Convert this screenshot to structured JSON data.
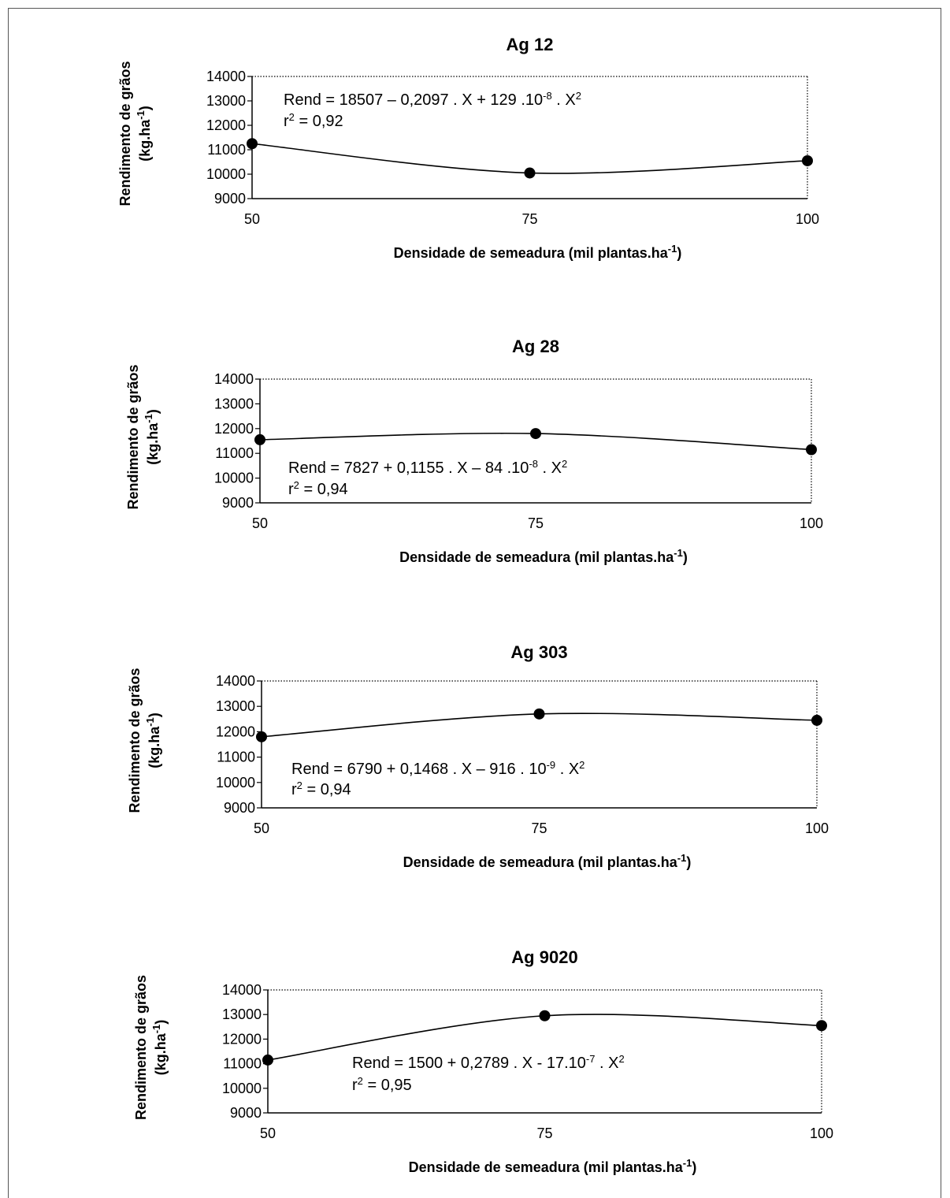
{
  "chart_data": [
    {
      "type": "line",
      "title": "Ag 12",
      "xlabel": "Densidade de semeadura (mil plantas.ha",
      "xlabel_sup": "-1",
      "xlabel_end": ")",
      "ylabel_line1": "Rendimento de grãos",
      "ylabel_line2": "(kg.ha",
      "ylabel_sup": "-1",
      "ylabel_end": ")",
      "x_ticks": [
        "50",
        "75",
        "100"
      ],
      "y_ticks": [
        "9000",
        "10000",
        "11000",
        "12000",
        "13000",
        "14000"
      ],
      "xlim": [
        50,
        100
      ],
      "ylim": [
        9000,
        14000
      ],
      "x": [
        50,
        75,
        100
      ],
      "values": [
        11250,
        10050,
        10550
      ],
      "equation": {
        "a": "Rend = 18507 – 0,2097 . X + 129 .10",
        "exp": "-8",
        "b": " . X",
        "pow": "2",
        "r_prefix": "r",
        "r_pow": "2",
        "r_suffix": " = 0,92"
      },
      "equation_anchor": "top-left"
    },
    {
      "type": "line",
      "title": "Ag 28",
      "xlabel": "Densidade de semeadura (mil plantas.ha",
      "xlabel_sup": "-1",
      "xlabel_end": ")",
      "ylabel_line1": "Rendimento de grãos",
      "ylabel_line2": "(kg.ha",
      "ylabel_sup": "-1",
      "ylabel_end": ")",
      "x_ticks": [
        "50",
        "75",
        "100"
      ],
      "y_ticks": [
        "9000",
        "10000",
        "11000",
        "12000",
        "13000",
        "14000"
      ],
      "xlim": [
        50,
        100
      ],
      "ylim": [
        9000,
        14000
      ],
      "x": [
        50,
        75,
        100
      ],
      "values": [
        11550,
        11800,
        11150
      ],
      "equation": {
        "a": "Rend = 7827 + 0,1155 . X – 84 .10",
        "exp": "-8",
        "b": " . X",
        "pow": "2",
        "r_prefix": "r",
        "r_pow": "2",
        "r_suffix": " = 0,94"
      },
      "equation_anchor": "bottom-left"
    },
    {
      "type": "line",
      "title": "Ag 303",
      "xlabel": "Densidade de semeadura (mil plantas.ha",
      "xlabel_sup": "-1",
      "xlabel_end": ")",
      "ylabel_line1": "Rendimento de grãos",
      "ylabel_line2": "(kg.ha",
      "ylabel_sup": "-1",
      "ylabel_end": ")",
      "x_ticks": [
        "50",
        "75",
        "100"
      ],
      "y_ticks": [
        "9000",
        "10000",
        "11000",
        "12000",
        "13000",
        "14000"
      ],
      "xlim": [
        50,
        100
      ],
      "ylim": [
        9000,
        14000
      ],
      "x": [
        50,
        75,
        100
      ],
      "values": [
        11800,
        12700,
        12450
      ],
      "equation": {
        "a": "Rend = 6790 + 0,1468 . X – 916 . 10",
        "exp": "-9",
        "b": " . X",
        "pow": "2",
        "r_prefix": "r",
        "r_pow": "2",
        "r_suffix": " = 0,94"
      },
      "equation_anchor": "bottom-left"
    },
    {
      "type": "line",
      "title": "Ag 9020",
      "xlabel": "Densidade de semeadura (mil plantas.ha",
      "xlabel_sup": "-1",
      "xlabel_end": ")",
      "ylabel_line1": "Rendimento de grãos",
      "ylabel_line2": "(kg.ha",
      "ylabel_sup": "-1",
      "ylabel_end": ")",
      "x_ticks": [
        "50",
        "75",
        "100"
      ],
      "y_ticks": [
        "9000",
        "10000",
        "11000",
        "12000",
        "13000",
        "14000"
      ],
      "xlim": [
        50,
        100
      ],
      "ylim": [
        9000,
        14000
      ],
      "x": [
        50,
        75,
        100
      ],
      "values": [
        11150,
        12950,
        12550
      ],
      "equation": {
        "a": "Rend = 1500 + 0,2789 . X - 17.10",
        "exp": "-7",
        "b": " . X",
        "pow": "2",
        "r_prefix": "r",
        "r_pow": "2",
        "r_suffix": " = 0,95"
      },
      "equation_anchor": "middle"
    }
  ]
}
